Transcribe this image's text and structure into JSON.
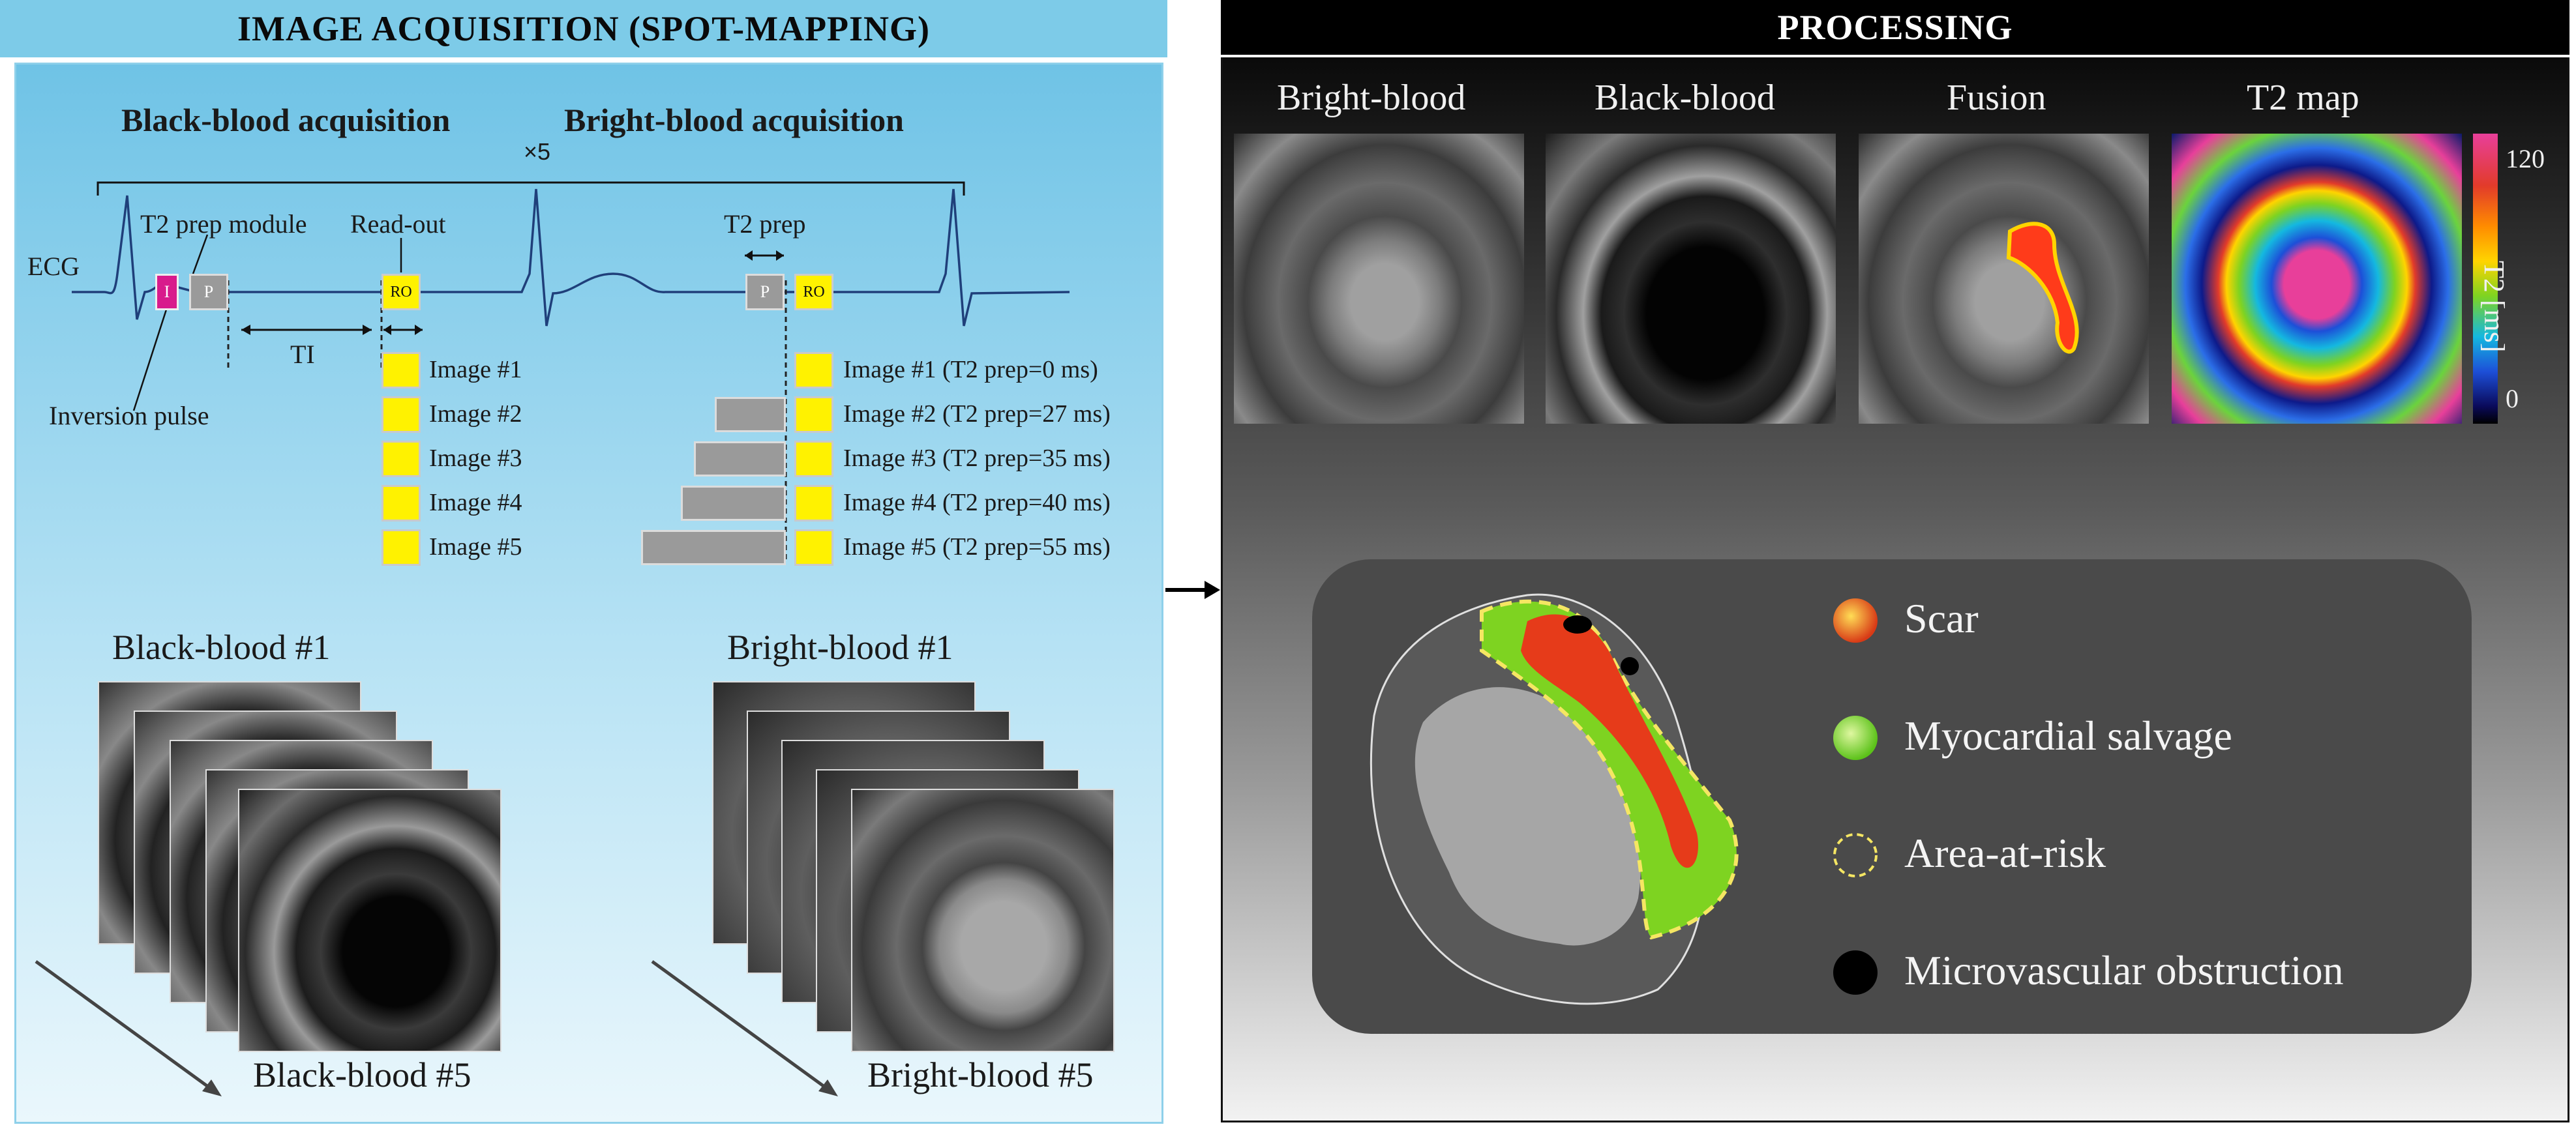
{
  "left_panel": {
    "title": "IMAGE ACQUISITION (SPOT-MAPPING)",
    "black_blood_acq": "Black-blood acquisition",
    "bright_blood_acq": "Bright-blood acquisition",
    "repeat": "×5",
    "ecg": "ECG",
    "t2_prep_module": "T2 prep module",
    "read_out": "Read-out",
    "t2_prep": "T2 prep",
    "ti": "TI",
    "inversion_pulse": "Inversion pulse",
    "box_i": "I",
    "box_p": "P",
    "box_ro": "RO",
    "black_images": [
      "Image #1",
      "Image #2",
      "Image #3",
      "Image #4",
      "Image #5"
    ],
    "bright_images": [
      "Image #1 (T2 prep=0 ms)",
      "Image #2 (T2 prep=27 ms)",
      "Image #3 (T2 prep=35 ms)",
      "Image #4 (T2 prep=40 ms)",
      "Image #5 (T2 prep=55 ms)"
    ],
    "t2_prep_ms": [
      0,
      27,
      35,
      40,
      55
    ],
    "stack_black_first": "Black-blood #1",
    "stack_black_last": "Black-blood #5",
    "stack_bright_first": "Bright-blood #1",
    "stack_bright_last": "Bright-blood #5"
  },
  "right_panel": {
    "title": "PROCESSING",
    "thumb_labels": [
      "Bright-blood",
      "Black-blood",
      "Fusion",
      "T2 map"
    ],
    "colorbar": {
      "max": "120",
      "min": "0",
      "label": "T2 [ms]"
    },
    "legend": [
      {
        "label": "Scar",
        "color": "#e64a19"
      },
      {
        "label": "Myocardial salvage",
        "color": "#7ed321"
      },
      {
        "label": "Area-at-risk",
        "color": "#f5e663"
      },
      {
        "label": "Microvascular obstruction",
        "color": "#000000"
      }
    ]
  },
  "colors": {
    "left_header_bg": "#7dcbe8",
    "right_header_bg": "#000000",
    "pink_box": "#d81b8c",
    "yellow_box": "#fff200",
    "grey_box": "#9a9a9a"
  }
}
